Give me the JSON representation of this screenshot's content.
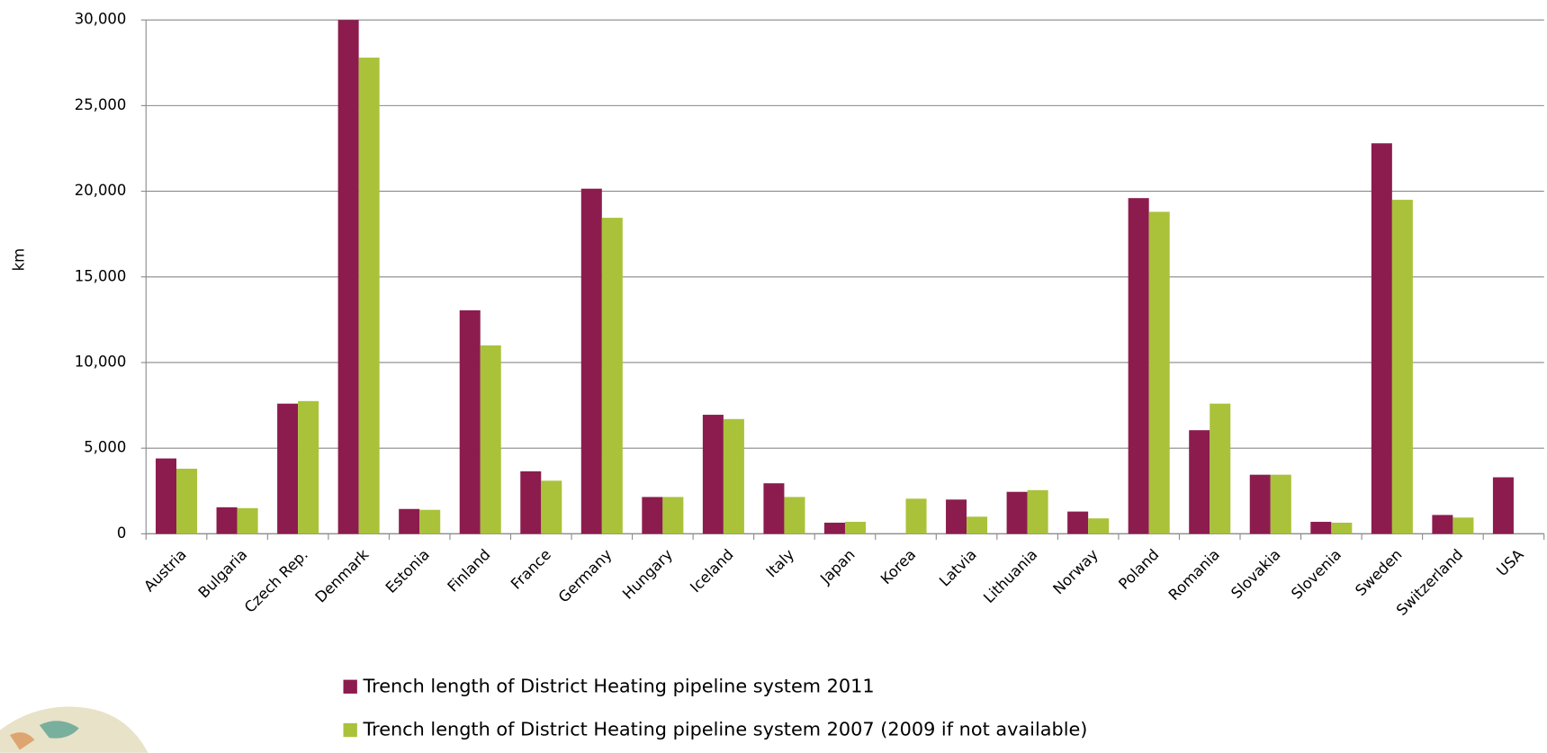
{
  "chart_data": {
    "type": "bar",
    "y_label": "km",
    "categories": [
      "Austria",
      "Bulgaria",
      "Czech Rep.",
      "Denmark",
      "Estonia",
      "Finland",
      "France",
      "Germany",
      "Hungary",
      "Iceland",
      "Italy",
      "Japan",
      "Korea",
      "Latvia",
      "Lithuania",
      "Norway",
      "Poland",
      "Romania",
      "Slovakia",
      "Slovenia",
      "Sweden",
      "Switzerland",
      "USA"
    ],
    "series": [
      {
        "name": "Trench length of District Heating pipeline system 2011",
        "color": "#8c1c4e",
        "values": [
          4400,
          1550,
          7600,
          30000,
          1450,
          13050,
          3650,
          20150,
          2150,
          6950,
          2950,
          650,
          null,
          2000,
          2450,
          1300,
          19600,
          6050,
          3450,
          700,
          22800,
          1100,
          3300
        ]
      },
      {
        "name": "Trench length of District Heating pipeline system 2007 (2009 if not available)",
        "color": "#a9c23a",
        "values": [
          3800,
          1500,
          7750,
          27800,
          1400,
          11000,
          3100,
          18450,
          2150,
          6700,
          2150,
          700,
          2050,
          1000,
          2550,
          900,
          18800,
          7600,
          3450,
          650,
          19500,
          950,
          null
        ]
      }
    ],
    "ylim": [
      0,
      30000
    ],
    "yticks": [
      {
        "value": 0,
        "label": "0"
      },
      {
        "value": 5000,
        "label": "5,000"
      },
      {
        "value": 10000,
        "label": "10,000"
      },
      {
        "value": 15000,
        "label": "15,000"
      },
      {
        "value": 20000,
        "label": "20,000"
      },
      {
        "value": 25000,
        "label": "25,000"
      },
      {
        "value": 30000,
        "label": "30,000"
      }
    ],
    "grid": true,
    "legend": "bottom"
  }
}
